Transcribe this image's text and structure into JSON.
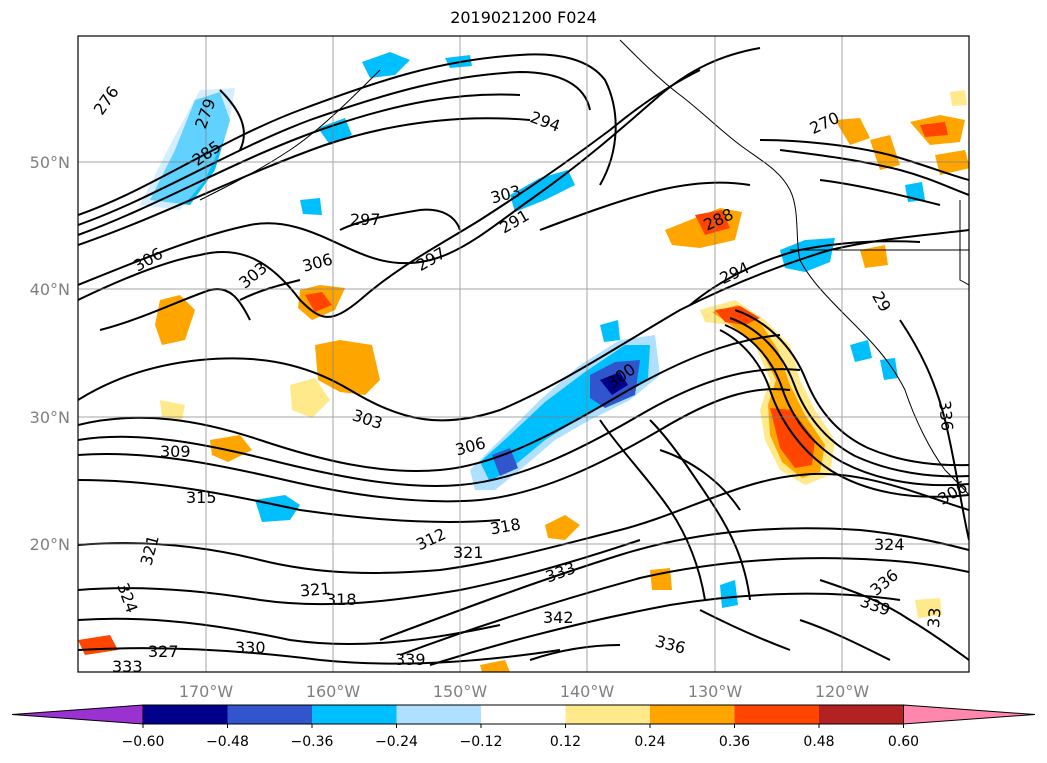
{
  "title": "2019021200 F024",
  "lat_labels": [
    "50°N",
    "40°N",
    "30°N",
    "20°N"
  ],
  "lon_labels": [
    "170°W",
    "160°W",
    "150°W",
    "140°W",
    "130°W",
    "120°W"
  ],
  "colorbar": {
    "colors": [
      "#9a31d1",
      "#00008b",
      "#3155cc",
      "#00bfff",
      "#b0e0ff",
      "#ffffff",
      "#ffe98a",
      "#ffa500",
      "#ff4500",
      "#b22222",
      "#ff86ad"
    ],
    "ticks": [
      "−0.60",
      "−0.48",
      "−0.36",
      "−0.24",
      "−0.12",
      "0.12",
      "0.24",
      "0.36",
      "0.48",
      "0.60"
    ]
  },
  "contour_labels": [
    "276",
    "279",
    "285",
    "294",
    "270",
    "303",
    "297",
    "291",
    "288",
    "306",
    "303",
    "306",
    "297",
    "294",
    "29",
    "300",
    "303",
    "306",
    "309",
    "315",
    "312",
    "318",
    "321",
    "321",
    "324",
    "321",
    "318",
    "327",
    "330",
    "339",
    "342",
    "333",
    "336",
    "336",
    "339",
    "324",
    "336",
    "306",
    "33",
    "333"
  ]
}
